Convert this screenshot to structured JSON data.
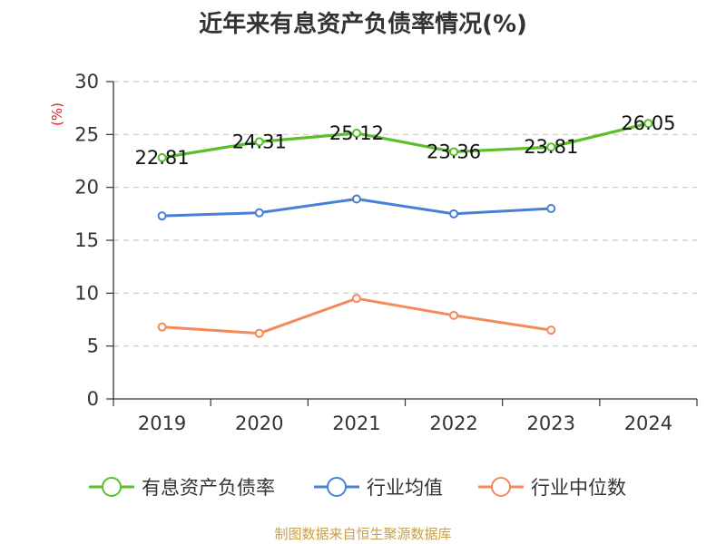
{
  "chart_data": {
    "type": "line",
    "title": "近年来有息资产负债率情况(%)",
    "ylabel": "(%)",
    "ylim": [
      0,
      30
    ],
    "yticks": [
      0,
      5,
      10,
      15,
      20,
      25,
      30
    ],
    "categories": [
      "2019",
      "2020",
      "2021",
      "2022",
      "2023",
      "2024"
    ],
    "grid": "horizontal-dashed",
    "legend_position": "bottom",
    "series": [
      {
        "name": "有息资产负债率",
        "color": "#5abf2a",
        "values": [
          22.81,
          24.31,
          25.12,
          23.36,
          23.81,
          26.05
        ],
        "labels": [
          "22.81",
          "24.31",
          "25.12",
          "23.36",
          "23.81",
          "26.05"
        ]
      },
      {
        "name": "行业均值",
        "color": "#4a7fd6",
        "values": [
          17.3,
          17.6,
          18.9,
          17.5,
          18.0,
          null
        ]
      },
      {
        "name": "行业中位数",
        "color": "#f4895a",
        "values": [
          6.8,
          6.2,
          9.5,
          7.9,
          6.5,
          null
        ]
      }
    ]
  },
  "footer": {
    "source": "制图数据来自恒生聚源数据库"
  }
}
